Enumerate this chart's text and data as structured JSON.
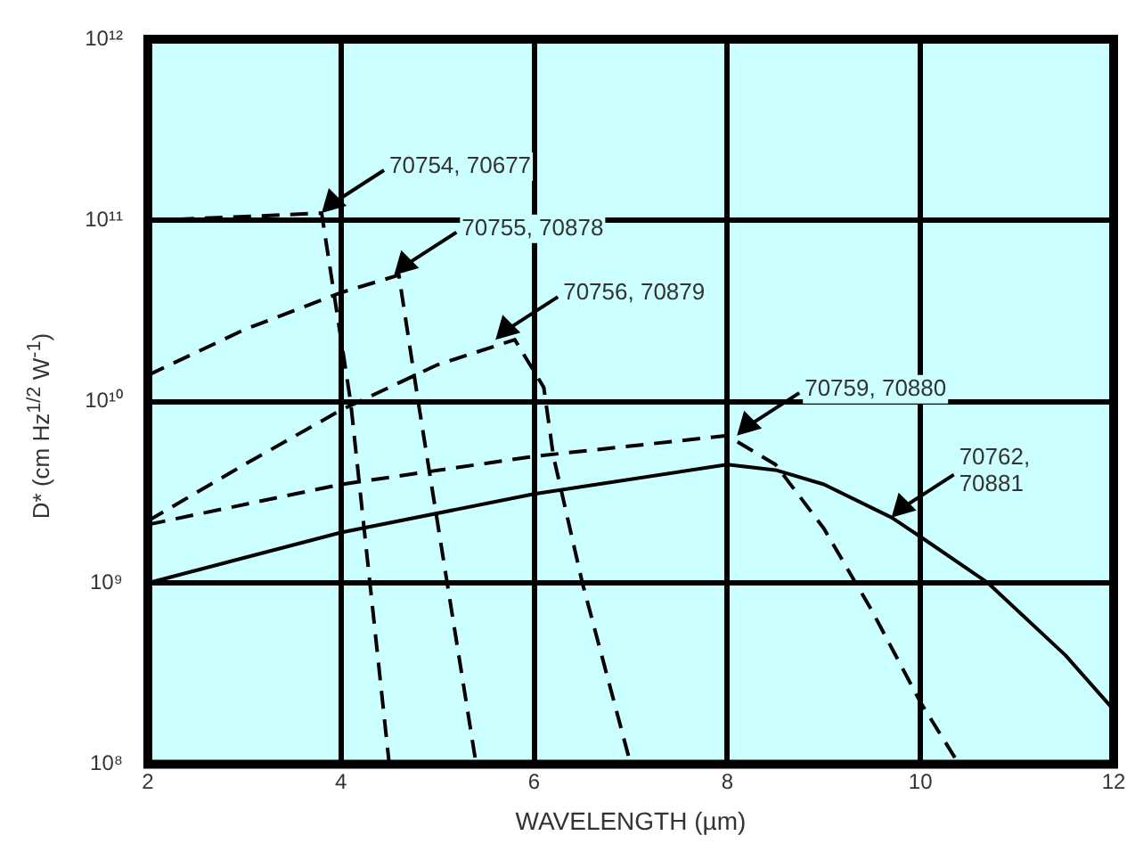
{
  "chart_data": {
    "type": "line",
    "xlabel": "WAVELENGTH (µm)",
    "ylabel": "D* (cm Hz$^{1/2}$ W$^{-1}$)",
    "log": "y",
    "grid": true,
    "legend": false,
    "marker": "none",
    "xlim": [
      2,
      12
    ],
    "xticks": [
      2,
      4,
      6,
      8,
      10,
      12
    ],
    "ylim": [
      100000000.0,
      1000000000000.0
    ],
    "yticks": [
      {
        "value": 100000000.0,
        "label": "10⁸"
      },
      {
        "value": 1000000000.0,
        "label": "10⁹"
      },
      {
        "value": 10000000000.0,
        "label": "10¹⁰"
      },
      {
        "value": 100000000000.0,
        "label": "10¹¹"
      },
      {
        "value": 1000000000000.0,
        "label": "10¹²"
      }
    ],
    "series": [
      {
        "color": "#000000",
        "line_style": "dashed",
        "x": [
          2,
          3,
          3.8,
          4.1,
          4.3,
          4.5
        ],
        "values": [
          100000000000.0,
          105000000000.0,
          110000000000.0,
          10000000000.0,
          1000000000.0,
          100000000.0
        ]
      },
      {
        "color": "#000000",
        "line_style": "dashed",
        "x": [
          2,
          3,
          4,
          4.6,
          4.8,
          5.1,
          5.4
        ],
        "values": [
          14000000000.0,
          25000000000.0,
          40000000000.0,
          50000000000.0,
          10000000000.0,
          1000000000.0,
          100000000.0
        ]
      },
      {
        "color": "#000000",
        "line_style": "dashed",
        "x": [
          2,
          3,
          4,
          5,
          5.8,
          6.1,
          6.2,
          6.5,
          7.0
        ],
        "values": [
          2200000000.0,
          4500000000.0,
          9000000000.0,
          16000000000.0,
          22000000000.0,
          12000000000.0,
          5000000000.0,
          1000000000.0,
          100000000.0
        ]
      },
      {
        "color": "#000000",
        "line_style": "dashed",
        "x": [
          2,
          4,
          6,
          8,
          8.5,
          9,
          9.5,
          10,
          10.4
        ],
        "values": [
          2100000000.0,
          3500000000.0,
          5000000000.0,
          6500000000.0,
          4500000000.0,
          2000000000.0,
          700000000.0,
          220000000.0,
          100000000.0
        ]
      },
      {
        "color": "#000000",
        "line_style": "solid",
        "x": [
          2,
          4,
          6,
          8,
          8.5,
          9,
          9.7,
          10,
          10.7,
          11.5,
          12
        ],
        "values": [
          1000000000.0,
          1900000000.0,
          3100000000.0,
          4500000000.0,
          4200000000.0,
          3500000000.0,
          2300000000.0,
          1800000000.0,
          1000000000.0,
          400000000.0,
          200000000.0
        ]
      }
    ],
    "annotations": [
      {
        "text": "70754, 70677",
        "x": 3.8,
        "y": 110000000000.0
      },
      {
        "text": "70755, 70878",
        "x": 4.55,
        "y": 50000000000.0
      },
      {
        "text": "70756, 70879",
        "x": 5.6,
        "y": 22000000000.0
      },
      {
        "text": "70759, 70880",
        "x": 8.1,
        "y": 6500000000.0
      },
      {
        "text": "70762,\n70881",
        "x": 9.7,
        "y": 2300000000.0
      }
    ]
  }
}
